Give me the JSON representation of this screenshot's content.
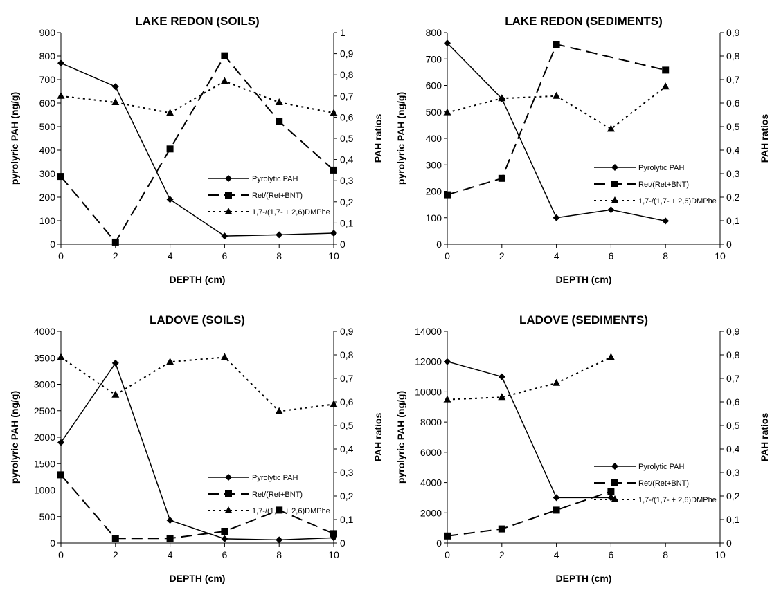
{
  "chart_data": [
    {
      "type": "line",
      "title": "LAKE REDON (SOILS)",
      "xlabel": "DEPTH (cm)",
      "ylabel": "pyrolyric PAH (ng/g)",
      "y2label": "PAH ratios",
      "xlim": [
        0,
        10
      ],
      "xticks": [
        "0",
        "2",
        "4",
        "6",
        "8",
        "10"
      ],
      "ylim": [
        0,
        900
      ],
      "yticks": [
        "0",
        "100",
        "200",
        "300",
        "400",
        "500",
        "600",
        "700",
        "800",
        "900"
      ],
      "y2lim": [
        0,
        1
      ],
      "y2ticks": [
        "0",
        "0,1",
        "0,2",
        "0,3",
        "0,4",
        "0,5",
        "0,6",
        "0,7",
        "0,8",
        "0,9",
        "1"
      ],
      "legend_position": "lower-right",
      "series": [
        {
          "name": "Pyrolytic PAH",
          "axis": "left",
          "marker": "diamond",
          "style": "solid",
          "x": [
            0,
            2,
            4,
            6,
            8,
            10
          ],
          "y": [
            770,
            670,
            190,
            35,
            40,
            47
          ]
        },
        {
          "name": "Ret/(Ret+BNT)",
          "axis": "right",
          "marker": "square",
          "style": "longdash",
          "x": [
            0,
            2,
            4,
            6,
            8,
            10
          ],
          "y": [
            0.32,
            0.01,
            0.45,
            0.89,
            0.58,
            0.35
          ]
        },
        {
          "name": "1,7-/(1,7- + 2,6)DMPhe",
          "axis": "right",
          "marker": "triangle",
          "style": "dotted",
          "x": [
            0,
            2,
            4,
            6,
            8,
            10
          ],
          "y": [
            0.7,
            0.67,
            0.62,
            0.77,
            0.67,
            0.62
          ]
        }
      ]
    },
    {
      "type": "line",
      "title": "LAKE REDON (SEDIMENTS)",
      "xlabel": "DEPTH (cm)",
      "ylabel": "pyrolyric PAH (ng/g)",
      "y2label": "PAH ratios",
      "xlim": [
        0,
        10
      ],
      "xticks": [
        "0",
        "2",
        "4",
        "6",
        "8",
        "10"
      ],
      "ylim": [
        0,
        800
      ],
      "yticks": [
        "0",
        "100",
        "200",
        "300",
        "400",
        "500",
        "600",
        "700",
        "800"
      ],
      "y2lim": [
        0,
        0.9
      ],
      "y2ticks": [
        "0",
        "0,1",
        "0,2",
        "0,3",
        "0,4",
        "0,5",
        "0,6",
        "0,7",
        "0,8",
        "0,9"
      ],
      "legend_position": "center-right",
      "series": [
        {
          "name": "Pyrolytic PAH",
          "axis": "left",
          "marker": "diamond",
          "style": "solid",
          "x": [
            0,
            2,
            4,
            6,
            8
          ],
          "y": [
            760,
            550,
            100,
            130,
            88
          ]
        },
        {
          "name": "Ret/(Ret+BNT)",
          "axis": "right",
          "marker": "square",
          "style": "longdash",
          "x": [
            0,
            2,
            4,
            8
          ],
          "y": [
            0.21,
            0.28,
            0.85,
            0.74
          ]
        },
        {
          "name": "1,7-/(1,7- + 2,6)DMPhe",
          "axis": "right",
          "marker": "triangle",
          "style": "dotted",
          "x": [
            0,
            2,
            4,
            6,
            8
          ],
          "y": [
            0.56,
            0.62,
            0.63,
            0.49,
            0.67
          ]
        }
      ]
    },
    {
      "type": "line",
      "title": "LADOVE (SOILS)",
      "xlabel": "DEPTH (cm)",
      "ylabel": "pyrolyric PAH (ng/g)",
      "y2label": "PAH ratios",
      "xlim": [
        0,
        10
      ],
      "xticks": [
        "0",
        "2",
        "4",
        "6",
        "8",
        "10"
      ],
      "ylim": [
        0,
        4000
      ],
      "yticks": [
        "0",
        "500",
        "1000",
        "1500",
        "2000",
        "2500",
        "3000",
        "3500",
        "4000"
      ],
      "y2lim": [
        0,
        0.9
      ],
      "y2ticks": [
        "0",
        "0,1",
        "0,2",
        "0,3",
        "0,4",
        "0,5",
        "0,6",
        "0,7",
        "0,8",
        "0,9"
      ],
      "legend_position": "lower-right",
      "series": [
        {
          "name": "Pyrolytic PAH",
          "axis": "left",
          "marker": "diamond",
          "style": "solid",
          "x": [
            0,
            2,
            4,
            6,
            8,
            10
          ],
          "y": [
            1900,
            3400,
            430,
            80,
            60,
            100
          ]
        },
        {
          "name": "Ret/(Ret+BNT)",
          "axis": "right",
          "marker": "square",
          "style": "longdash",
          "x": [
            0,
            2,
            4,
            6,
            8,
            10
          ],
          "y": [
            0.29,
            0.02,
            0.02,
            0.05,
            0.14,
            0.04
          ]
        },
        {
          "name": "1,7-/(1,7- + 2,6)DMPhe",
          "axis": "right",
          "marker": "triangle",
          "style": "dotted",
          "x": [
            0,
            2,
            4,
            6,
            8,
            10
          ],
          "y": [
            0.79,
            0.63,
            0.77,
            0.79,
            0.56,
            0.59
          ]
        }
      ]
    },
    {
      "type": "line",
      "title": "LADOVE (SEDIMENTS)",
      "xlabel": "DEPTH (cm)",
      "ylabel": "pyrolyric PAH (ng/g)",
      "y2label": "PAH ratios",
      "xlim": [
        0,
        10
      ],
      "xticks": [
        "0",
        "2",
        "4",
        "6",
        "8",
        "10"
      ],
      "ylim": [
        0,
        14000
      ],
      "yticks": [
        "0",
        "2000",
        "4000",
        "6000",
        "8000",
        "10000",
        "12000",
        "14000"
      ],
      "y2lim": [
        0,
        0.9
      ],
      "y2ticks": [
        "0",
        "0,1",
        "0,2",
        "0,3",
        "0,4",
        "0,5",
        "0,6",
        "0,7",
        "0,8",
        "0,9"
      ],
      "legend_position": "center-right",
      "series": [
        {
          "name": "Pyrolytic PAH",
          "axis": "left",
          "marker": "diamond",
          "style": "solid",
          "x": [
            0,
            2,
            4,
            6
          ],
          "y": [
            12000,
            11000,
            3000,
            3000
          ]
        },
        {
          "name": "Ret/(Ret+BNT)",
          "axis": "right",
          "marker": "square",
          "style": "longdash",
          "x": [
            0,
            2,
            4,
            6
          ],
          "y": [
            0.03,
            0.06,
            0.14,
            0.22
          ]
        },
        {
          "name": "1,7-/(1,7- + 2,6)DMPhe",
          "axis": "right",
          "marker": "triangle",
          "style": "dotted",
          "x": [
            0,
            2,
            4,
            6
          ],
          "y": [
            0.61,
            0.62,
            0.68,
            0.79
          ]
        }
      ]
    }
  ]
}
